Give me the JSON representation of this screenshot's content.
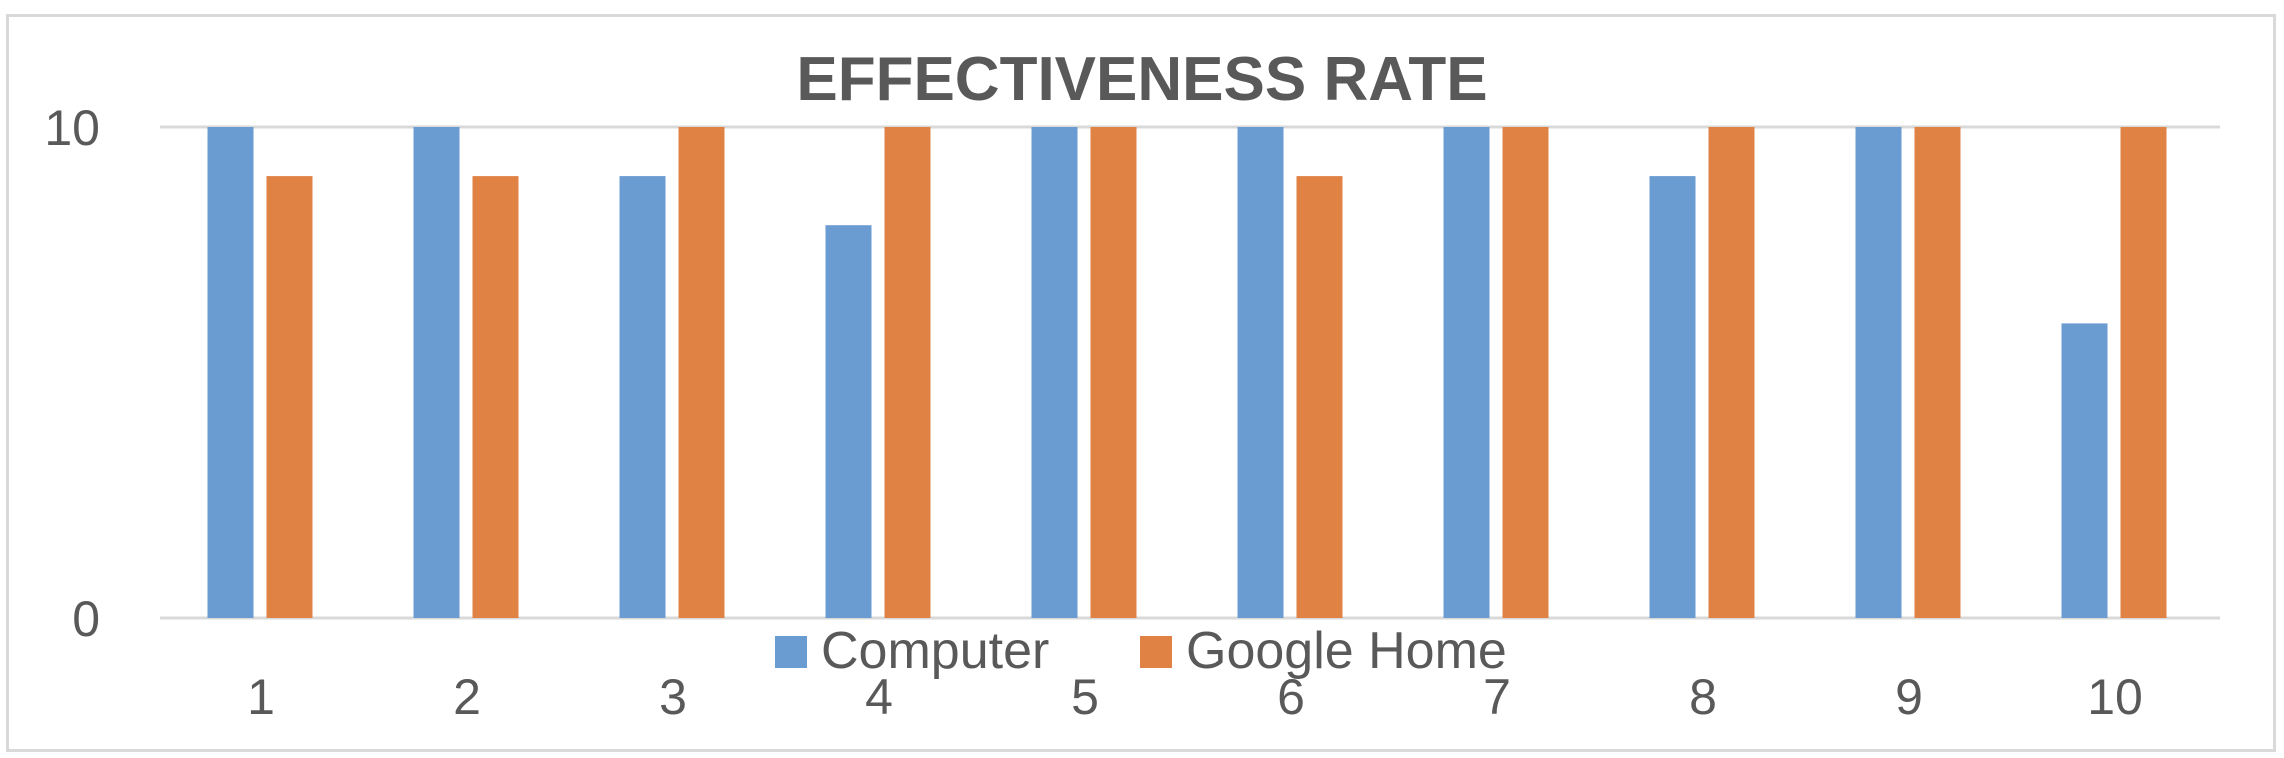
{
  "chart_data": {
    "type": "bar",
    "title": "EFFECTIVENESS RATE",
    "xlabel": "",
    "ylabel": "",
    "categories": [
      "1",
      "2",
      "3",
      "4",
      "5",
      "6",
      "7",
      "8",
      "9",
      "10"
    ],
    "series": [
      {
        "name": "Computer",
        "color": "#6a9bd1",
        "values": [
          10,
          10,
          9,
          8,
          10,
          10,
          10,
          9,
          10,
          6
        ]
      },
      {
        "name": "Google Home",
        "color": "#df8244",
        "values": [
          9,
          9,
          10,
          10,
          10,
          9,
          10,
          10,
          10,
          10
        ]
      }
    ],
    "ylim": [
      0,
      10
    ],
    "yticks": [
      "0",
      "10"
    ],
    "grid": true,
    "legend": "bottom"
  },
  "colors": {
    "text": "#595959",
    "title": "#595959",
    "gridline": "#d9d9d9",
    "frame": "#d9d9d9"
  }
}
